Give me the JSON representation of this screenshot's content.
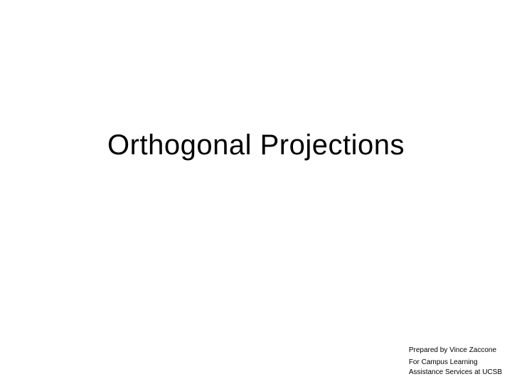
{
  "slide": {
    "title": "Orthogonal Projections",
    "title_fontsize": 40,
    "title_color": "#000000",
    "footer_line1": "Prepared by Vince Zaccone",
    "footer_line2": "For Campus Learning",
    "footer_line3": "Assistance Services at UCSB",
    "footer_fontsize": 10,
    "footer_color": "#000000",
    "background_color": "#ffffff"
  }
}
